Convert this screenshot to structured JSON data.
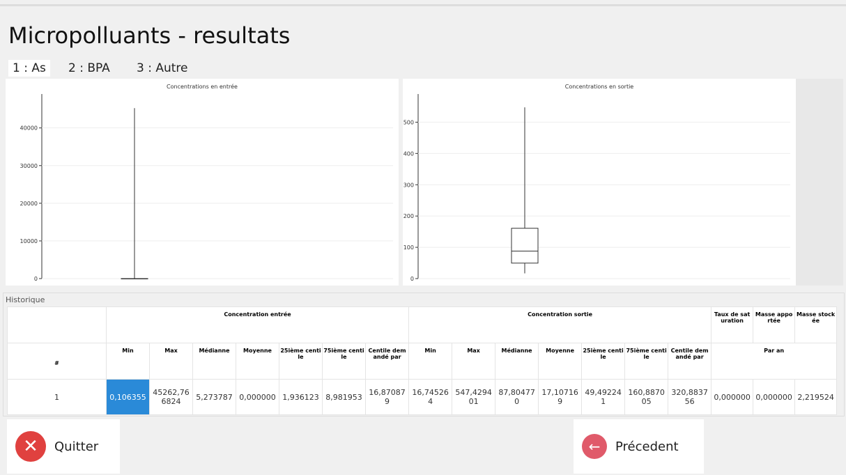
{
  "header": {
    "title": "Micropolluants - resultats"
  },
  "tabs": [
    "1 : As",
    "2 : BPA",
    "3 : Autre"
  ],
  "charts": [
    {
      "type": "box",
      "title": "Concentrations en entrée",
      "ylim": [
        0,
        49000
      ],
      "yticks": [
        0,
        10000,
        20000,
        30000,
        40000
      ],
      "min": 0.106355,
      "q1": 1.936123,
      "median": 5.273787,
      "q3": 8.981953,
      "max": 45262.766824
    },
    {
      "type": "box",
      "title": "Concentrations en sortie",
      "ylim": [
        0,
        590
      ],
      "yticks": [
        0,
        100,
        200,
        300,
        400,
        500
      ],
      "min": 16.745264,
      "q1": 49.492241,
      "median": 87.80477,
      "q3": 160.887005,
      "max": 547.429401
    }
  ],
  "history": {
    "label": "Historique",
    "table": {
      "group_headers": [
        "Concentration entrée",
        "Concentration sortie",
        "Taux de saturation",
        "Masse apportée",
        "Masse stockée"
      ],
      "row_header": "#",
      "columns": [
        "Min",
        "Max",
        "Médianne",
        "Moyenne",
        "25ième centile",
        "75ième centile",
        "Centile demandé par",
        "Min",
        "Max",
        "Médianne",
        "Moyenne",
        "25ième centile",
        "75ième centile",
        "Centile demandé par"
      ],
      "per_year": "Par an",
      "rows": [
        [
          "1",
          "0,106355",
          "45262,766824",
          "5,273787",
          "0,000000",
          "1,936123",
          "8,981953",
          "16,870879",
          "16,745264",
          "547,429401",
          "87,804770",
          "17,107169",
          "49,492241",
          "160,887005",
          "320,883756",
          "0,000000",
          "0,000000",
          "2,219524"
        ]
      ]
    }
  },
  "buttons": {
    "quit": "Quitter",
    "previous": "Précedent"
  }
}
